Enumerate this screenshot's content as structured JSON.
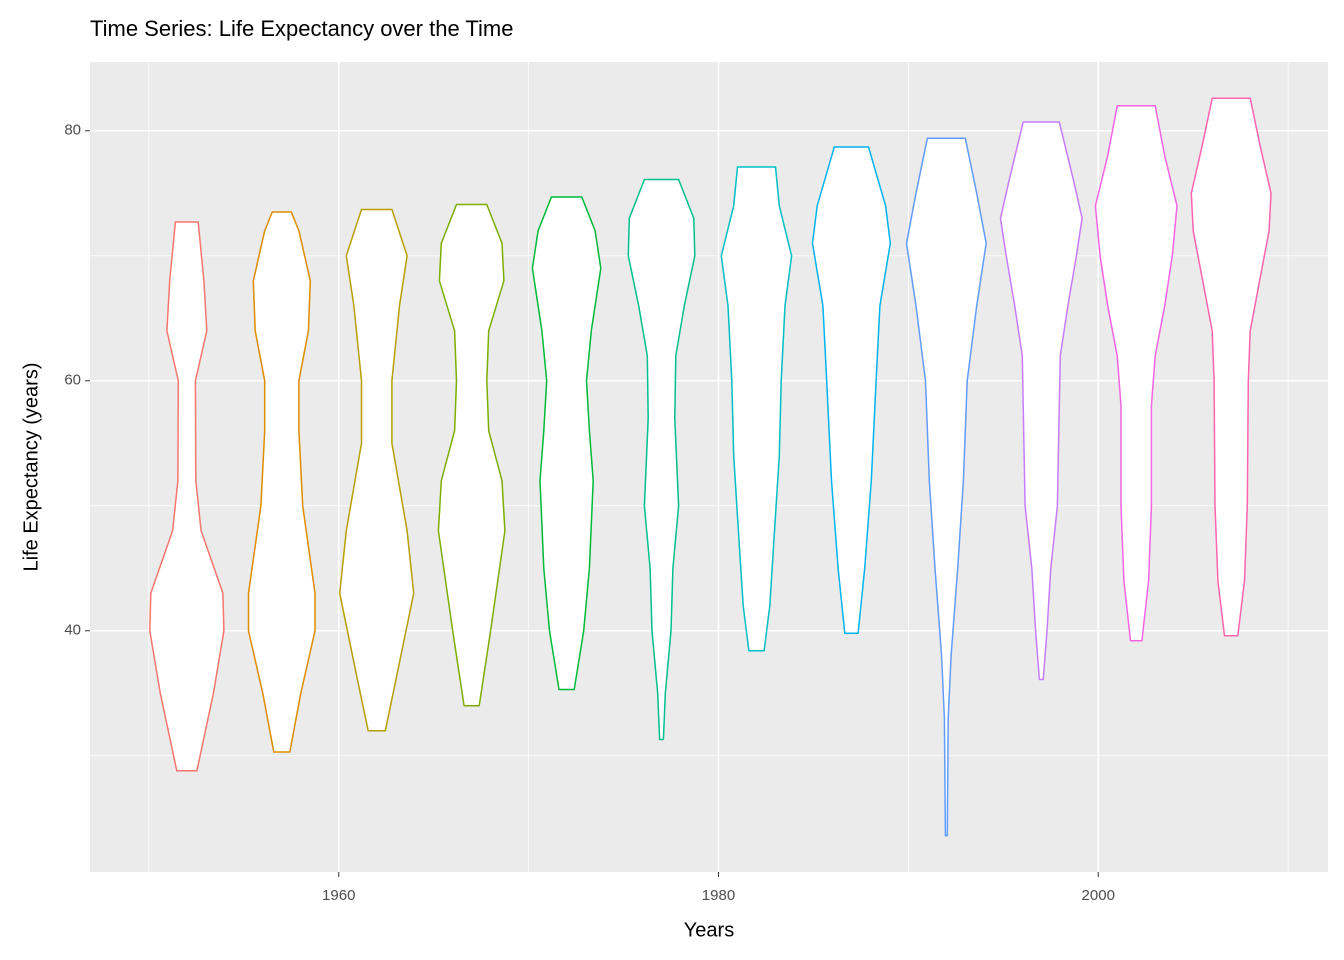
{
  "chart_data": {
    "type": "violin",
    "title": "Time Series: Life Expectancy over the Time",
    "x_label": "Years",
    "y_label": "Life Expectancy (years)",
    "xlim": [
      1946.9,
      2012.1
    ],
    "ylim": [
      20.7,
      85.5
    ],
    "xticks": [
      1960,
      1980,
      2000
    ],
    "yticks": [
      40,
      60,
      80
    ],
    "x_minor_ticks": [
      1950,
      1970,
      1990,
      2010
    ],
    "y_minor_ticks": [
      30,
      50,
      70
    ],
    "grid": true,
    "series": [
      {
        "x": 1952,
        "color": "#F8766D",
        "levels": [
          28.8,
          35,
          40,
          43,
          48,
          52,
          60,
          64,
          68,
          72.7
        ],
        "half_widths": [
          0.53,
          1.4,
          1.95,
          1.9,
          0.75,
          0.47,
          0.45,
          1.05,
          0.9,
          0.6
        ]
      },
      {
        "x": 1957,
        "color": "#DE8C00",
        "levels": [
          30.3,
          35,
          40,
          43,
          50,
          56,
          60,
          64,
          68,
          72,
          73.5
        ],
        "half_widths": [
          0.42,
          1.0,
          1.75,
          1.75,
          1.1,
          0.9,
          0.9,
          1.4,
          1.5,
          0.9,
          0.5
        ]
      },
      {
        "x": 1962,
        "color": "#B79F00",
        "levels": [
          32,
          36,
          43,
          48,
          55,
          60,
          66,
          70,
          73.7
        ],
        "half_widths": [
          0.45,
          1.0,
          1.95,
          1.6,
          0.8,
          0.8,
          1.2,
          1.6,
          0.8
        ]
      },
      {
        "x": 1967,
        "color": "#7CAE00",
        "levels": [
          34,
          40,
          48,
          52,
          56,
          60,
          64,
          68,
          71,
          74.1
        ],
        "half_widths": [
          0.4,
          1.0,
          1.75,
          1.6,
          0.9,
          0.8,
          0.9,
          1.7,
          1.6,
          0.8
        ]
      },
      {
        "x": 1972,
        "color": "#00BA38",
        "levels": [
          35.3,
          40,
          45,
          52,
          56,
          60,
          64,
          69,
          72,
          74.7
        ],
        "half_widths": [
          0.4,
          0.9,
          1.2,
          1.4,
          1.2,
          1.05,
          1.3,
          1.8,
          1.5,
          0.8
        ]
      },
      {
        "x": 1977,
        "color": "#00C08B",
        "levels": [
          31.3,
          35,
          40,
          45,
          50,
          57,
          62,
          66,
          70,
          73,
          76.1
        ],
        "half_widths": [
          0.1,
          0.2,
          0.5,
          0.6,
          0.9,
          0.7,
          0.75,
          1.2,
          1.75,
          1.7,
          0.9
        ]
      },
      {
        "x": 1982,
        "color": "#00BFC4",
        "levels": [
          38.4,
          42,
          48,
          54,
          60,
          66,
          70,
          74,
          77.1
        ],
        "half_widths": [
          0.4,
          0.7,
          0.95,
          1.2,
          1.3,
          1.5,
          1.85,
          1.2,
          1.0
        ]
      },
      {
        "x": 1987,
        "color": "#00B4F0",
        "levels": [
          39.8,
          45,
          52,
          60,
          66,
          71,
          74,
          78.7
        ],
        "half_widths": [
          0.35,
          0.7,
          1.05,
          1.3,
          1.5,
          2.05,
          1.8,
          0.9
        ]
      },
      {
        "x": 1992,
        "color": "#619CFF",
        "levels": [
          23.6,
          33,
          38,
          45,
          52,
          60,
          66,
          71,
          75,
          79.4
        ],
        "half_widths": [
          0.05,
          0.1,
          0.25,
          0.6,
          0.9,
          1.1,
          1.6,
          2.1,
          1.6,
          1.0
        ]
      },
      {
        "x": 1997,
        "color": "#C77CFF",
        "levels": [
          36.1,
          40,
          45,
          50,
          58,
          62,
          66,
          70,
          73,
          76,
          80.7
        ],
        "half_widths": [
          0.1,
          0.3,
          0.5,
          0.85,
          0.95,
          1.0,
          1.4,
          1.85,
          2.15,
          1.7,
          0.95
        ]
      },
      {
        "x": 2002,
        "color": "#F564E3",
        "levels": [
          39.2,
          44,
          50,
          58,
          62,
          66,
          70,
          74,
          78,
          82
        ],
        "half_widths": [
          0.3,
          0.65,
          0.8,
          0.8,
          1.0,
          1.5,
          1.9,
          2.15,
          1.5,
          1.0
        ]
      },
      {
        "x": 2007,
        "color": "#FF64B0",
        "levels": [
          39.6,
          44,
          50,
          60,
          64,
          68,
          72,
          75,
          79,
          82.6
        ],
        "half_widths": [
          0.35,
          0.7,
          0.85,
          0.9,
          1.0,
          1.5,
          2.0,
          2.1,
          1.5,
          1.0
        ]
      }
    ]
  }
}
